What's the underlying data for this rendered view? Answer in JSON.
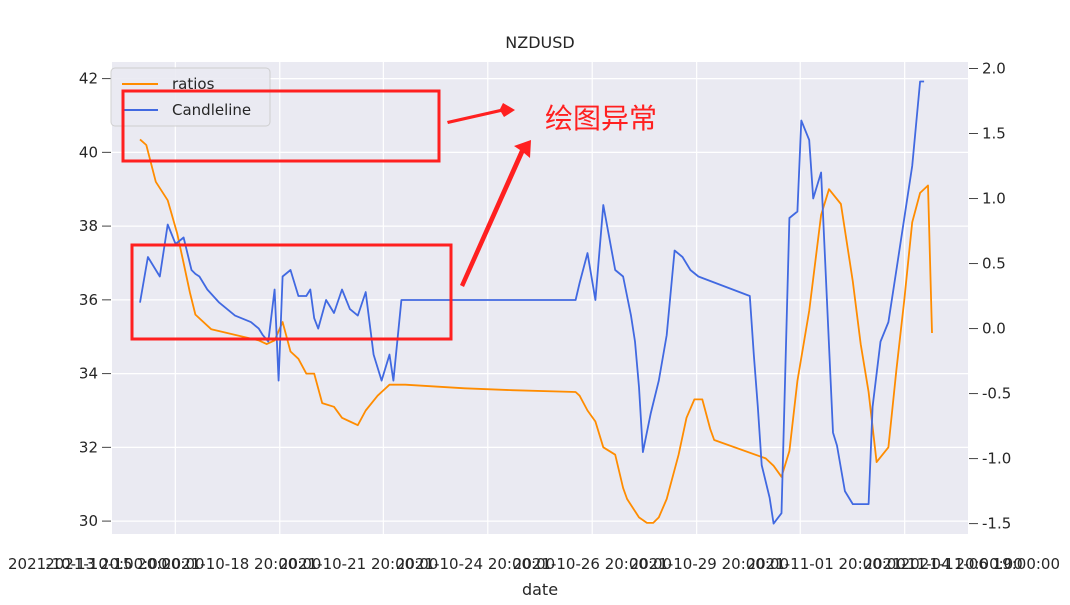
{
  "chart_data": {
    "type": "line",
    "title": "NZDUSD",
    "xlabel": "date",
    "ylabel_left": "",
    "ylabel_right": "",
    "x_tick_labels": [
      "2021-10-13 20:00:00",
      "2021-10-15 20:00:00",
      "2021-10-18 20:00:00",
      "2021-10-21 20:00:00",
      "2021-10-24 20:00:00",
      "2021-10-26 20:00:00",
      "2021-10-29 20:00:00",
      "2021-11-01 20:00:00",
      "2021-11-04 20:00:00",
      "2021-11-06 19:00:00"
    ],
    "y_left": {
      "ticks": [
        "30",
        "32",
        "34",
        "36",
        "38",
        "40",
        "42"
      ],
      "range": [
        29.65,
        42.45
      ]
    },
    "y_right": {
      "ticks": [
        "-1.5",
        "-1.0",
        "-0.5",
        "0.0",
        "0.5",
        "1.0",
        "1.5",
        "2.0"
      ],
      "range": [
        -1.58,
        2.05
      ]
    },
    "grid": true,
    "legend_position": "top-left",
    "colors": {
      "ratios": "#ff8c00",
      "candleline": "#4169e1",
      "annotation": "#ff2020",
      "background": "#eaeaf2"
    },
    "series": [
      {
        "name": "ratios",
        "axis": "left",
        "x": [
          0,
          0.008,
          0.02,
          0.035,
          0.047,
          0.055,
          0.063,
          0.07,
          0.09,
          0.13,
          0.15,
          0.16,
          0.17,
          0.18,
          0.19,
          0.2,
          0.21,
          0.22,
          0.23,
          0.245,
          0.255,
          0.265,
          0.275,
          0.285,
          0.3,
          0.315,
          0.33,
          0.335,
          0.41,
          0.47,
          0.55,
          0.555,
          0.565,
          0.575,
          0.585,
          0.6,
          0.61,
          0.615,
          0.63,
          0.64,
          0.648,
          0.655,
          0.665,
          0.68,
          0.69,
          0.7,
          0.71,
          0.72,
          0.725,
          0.79,
          0.8,
          0.81,
          0.82,
          0.83,
          0.845,
          0.86,
          0.87,
          0.885,
          0.9,
          0.91,
          0.92,
          0.93,
          0.945,
          0.955,
          0.965,
          0.975,
          0.985,
          0.995,
          1
        ],
        "y": [
          40.35,
          40.2,
          39.2,
          38.7,
          37.8,
          37.0,
          36.2,
          35.6,
          35.2,
          35.0,
          34.9,
          34.8,
          34.9,
          35.4,
          34.6,
          34.4,
          34.0,
          34.0,
          33.2,
          33.1,
          32.8,
          32.7,
          32.6,
          33.0,
          33.4,
          33.7,
          33.7,
          33.7,
          33.6,
          33.55,
          33.5,
          33.4,
          33.0,
          32.7,
          32.0,
          31.8,
          30.9,
          30.6,
          30.1,
          29.95,
          29.95,
          30.1,
          30.6,
          31.8,
          32.8,
          33.3,
          33.3,
          32.5,
          32.2,
          31.7,
          31.5,
          31.2,
          31.9,
          33.8,
          35.7,
          38.3,
          39.0,
          38.6,
          36.5,
          34.8,
          33.5,
          31.6,
          32.0,
          34.1,
          36.0,
          38.1,
          38.9,
          39.1,
          35.1
        ]
      },
      {
        "name": "Candleline",
        "axis": "right",
        "x": [
          0,
          0.01,
          0.025,
          0.035,
          0.045,
          0.055,
          0.065,
          0.07,
          0.075,
          0.085,
          0.1,
          0.12,
          0.14,
          0.15,
          0.155,
          0.162,
          0.17,
          0.175,
          0.18,
          0.19,
          0.2,
          0.21,
          0.215,
          0.22,
          0.225,
          0.235,
          0.245,
          0.255,
          0.265,
          0.275,
          0.285,
          0.295,
          0.305,
          0.315,
          0.32,
          0.33,
          0.335,
          0.55,
          0.555,
          0.565,
          0.575,
          0.585,
          0.6,
          0.61,
          0.62,
          0.625,
          0.63,
          0.635,
          0.645,
          0.655,
          0.665,
          0.675,
          0.685,
          0.695,
          0.705,
          0.77,
          0.775,
          0.78,
          0.785,
          0.795,
          0.8,
          0.81,
          0.82,
          0.83,
          0.835,
          0.845,
          0.85,
          0.86,
          0.875,
          0.88,
          0.89,
          0.9,
          0.91,
          0.92,
          0.925,
          0.935,
          0.945,
          0.955,
          0.965,
          0.975,
          0.985,
          0.99
        ],
        "y": [
          0.2,
          0.55,
          0.4,
          0.8,
          0.65,
          0.7,
          0.45,
          0.42,
          0.4,
          0.3,
          0.2,
          0.1,
          0.05,
          0.0,
          -0.05,
          -0.1,
          0.3,
          -0.4,
          0.4,
          0.45,
          0.25,
          0.25,
          0.3,
          0.08,
          0.0,
          0.22,
          0.12,
          0.3,
          0.15,
          0.1,
          0.28,
          -0.2,
          -0.4,
          -0.2,
          -0.4,
          0.22,
          0.22,
          0.22,
          0.35,
          0.58,
          0.22,
          0.95,
          0.45,
          0.4,
          0.1,
          -0.1,
          -0.45,
          -0.95,
          -0.65,
          -0.4,
          -0.05,
          0.6,
          0.55,
          0.45,
          0.4,
          0.25,
          -0.2,
          -0.6,
          -1.05,
          -1.3,
          -1.5,
          -1.42,
          0.85,
          0.9,
          1.6,
          1.45,
          1.0,
          1.2,
          -0.8,
          -0.9,
          -1.25,
          -1.35,
          -1.35,
          -1.35,
          -0.6,
          -0.1,
          0.05,
          0.45,
          0.85,
          1.25,
          1.9,
          1.9
        ]
      }
    ],
    "annotation": "绘图异常"
  }
}
